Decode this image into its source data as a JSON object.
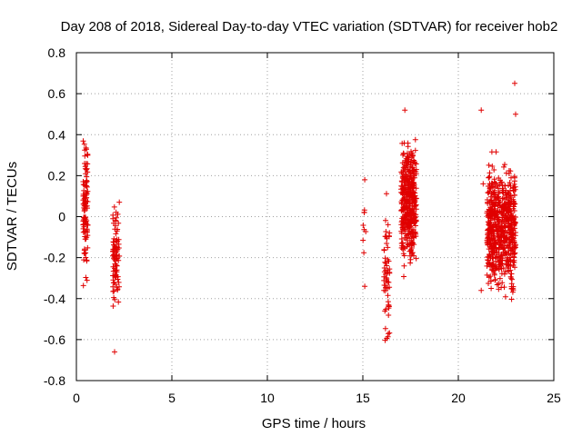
{
  "chart_data": {
    "type": "scatter",
    "title": "Day 208 of 2018, Sidereal Day-to-day VTEC variation (SDTVAR) for receiver hob2",
    "xlabel": "GPS time / hours",
    "ylabel": "SDTVAR / TECUs",
    "xlim": [
      0,
      25
    ],
    "ylim": [
      -0.8,
      0.8
    ],
    "xticks": [
      0,
      5,
      10,
      15,
      20,
      25
    ],
    "yticks": [
      -0.8,
      -0.6,
      -0.4,
      -0.2,
      0,
      0.2,
      0.4,
      0.6,
      0.8
    ],
    "xtick_labels": [
      "0",
      "5",
      "10",
      "15",
      "20",
      "25"
    ],
    "ytick_labels": [
      "-0.8",
      "-0.6",
      "-0.4",
      "-0.2",
      "0",
      "0.2",
      "0.4",
      "0.6",
      "0.8"
    ],
    "grid": true,
    "marker": "+",
    "color": "#e00000",
    "clusters": [
      {
        "x": [
          0.35,
          0.6
        ],
        "y": [
          -0.38,
          0.48
        ],
        "n": 110,
        "seed": 11
      },
      {
        "x": [
          1.9,
          2.25
        ],
        "y": [
          -0.55,
          0.17
        ],
        "n": 90,
        "seed": 23
      },
      {
        "x": [
          15.0,
          15.2
        ],
        "y": [
          -0.35,
          0.28
        ],
        "n": 8,
        "seed": 37
      },
      {
        "x": [
          16.1,
          16.4
        ],
        "y": [
          -0.74,
          0.19
        ],
        "n": 60,
        "seed": 41
      },
      {
        "x": [
          17.0,
          17.8
        ],
        "y": [
          -0.32,
          0.47
        ],
        "n": 420,
        "seed": 53
      },
      {
        "x": [
          21.5,
          23.0
        ],
        "y": [
          -0.46,
          0.36
        ],
        "n": 650,
        "seed": 67
      }
    ],
    "points": [
      {
        "x": 2.0,
        "y": -0.66
      },
      {
        "x": 21.2,
        "y": 0.52
      },
      {
        "x": 17.2,
        "y": 0.52
      },
      {
        "x": 15.1,
        "y": -0.34
      },
      {
        "x": 15.1,
        "y": 0.18
      },
      {
        "x": 22.95,
        "y": 0.65
      },
      {
        "x": 23.0,
        "y": 0.5
      },
      {
        "x": 21.3,
        "y": 0.16
      },
      {
        "x": 21.2,
        "y": -0.36
      }
    ]
  }
}
